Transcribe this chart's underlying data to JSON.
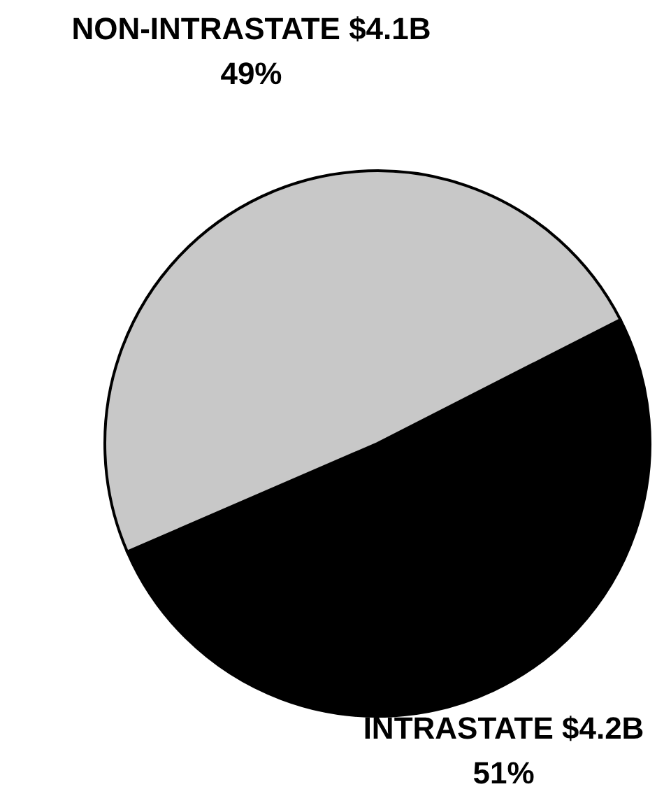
{
  "chart_data": {
    "type": "pie",
    "categories": [
      "INTRASTATE $4.2B",
      "NON-INTRASTATE $4.1B"
    ],
    "values": [
      51,
      49
    ],
    "colors": [
      "#000000",
      "#c8c8c8"
    ],
    "value_labels": [
      "51%",
      "49%"
    ]
  }
}
